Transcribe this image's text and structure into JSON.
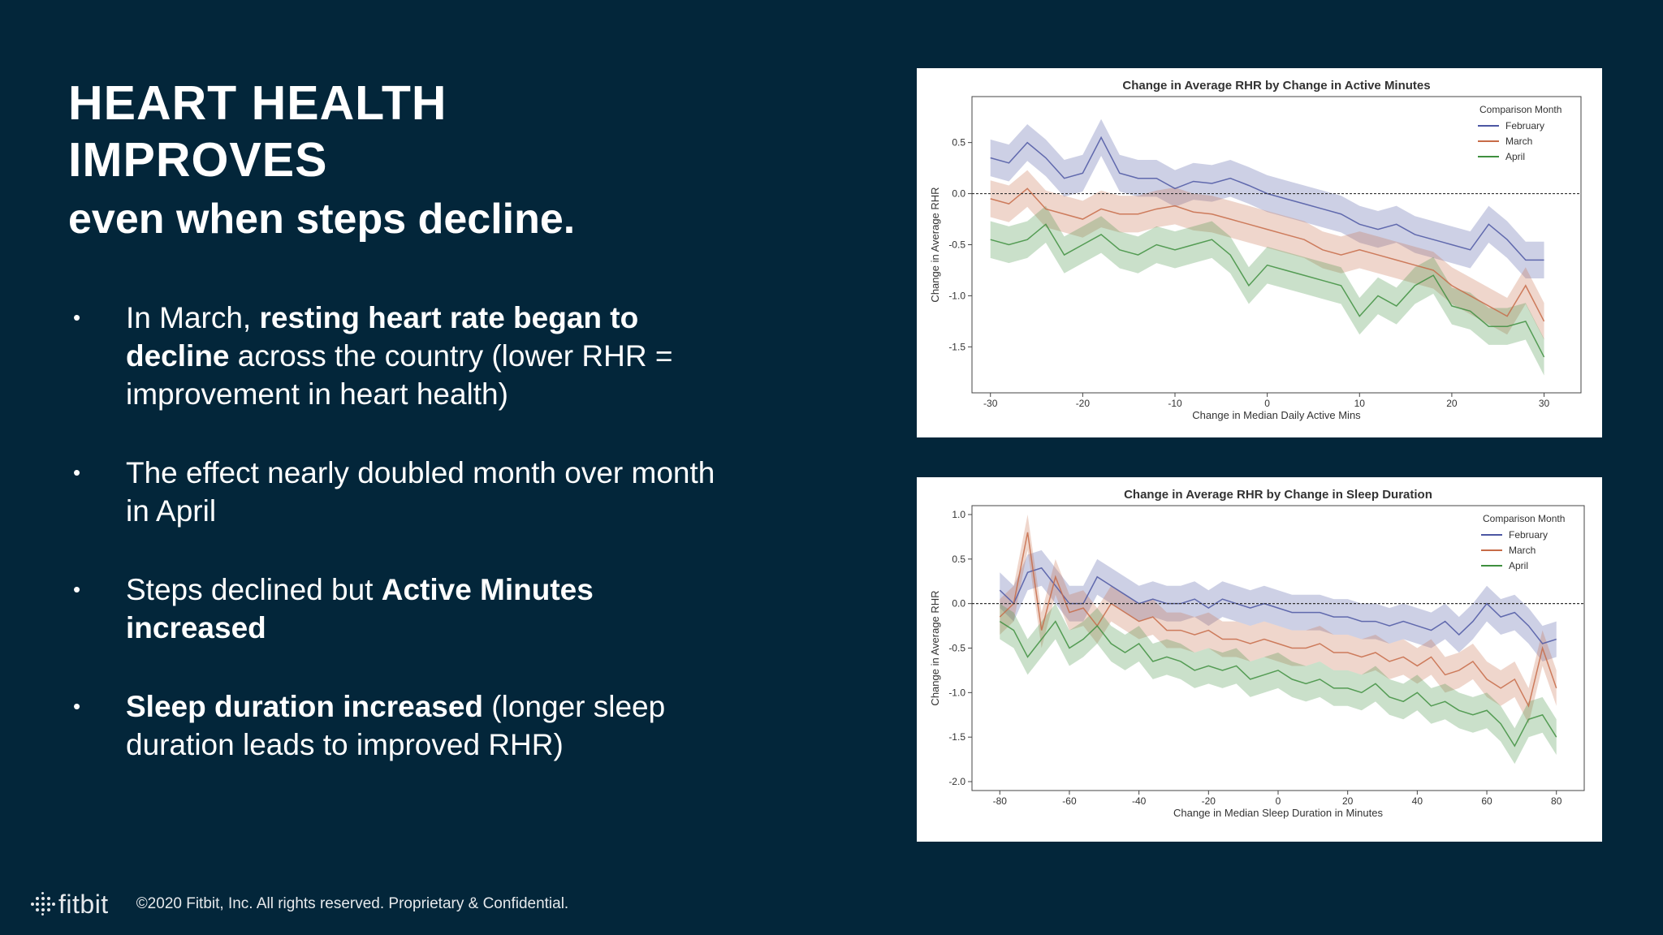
{
  "slide": {
    "title_line1": "HEART HEALTH",
    "title_line2": "IMPROVES",
    "subtitle": "even when steps decline.",
    "bullets": [
      {
        "segments": [
          {
            "text": "In March, ",
            "bold": false
          },
          {
            "text": "resting heart rate began to decline",
            "bold": true
          },
          {
            "text": " across the country (lower RHR = improvement in heart health)",
            "bold": false
          }
        ]
      },
      {
        "segments": [
          {
            "text": "The effect nearly doubled month over month in April",
            "bold": false
          }
        ]
      },
      {
        "segments": [
          {
            "text": "Steps declined but ",
            "bold": false
          },
          {
            "text": "Active Minutes increased",
            "bold": true
          }
        ]
      },
      {
        "segments": [
          {
            "text": "Sleep duration increased",
            "bold": true
          },
          {
            "text": " (longer sleep duration leads to improved RHR)",
            "bold": false
          }
        ]
      }
    ],
    "bullet_glyph": "•"
  },
  "footer": {
    "logo_text": "fitbit",
    "logo_icon": "fitbit-dots-icon",
    "copyright": "©2020 Fitbit, Inc. All rights reserved. Proprietary & Confidential."
  },
  "chart_data": [
    {
      "type": "line",
      "title": "Change in Average RHR by Change in Active Minutes",
      "xlabel": "Change in Median Daily Active Mins",
      "ylabel": "Change in Average RHR",
      "xlim": [
        -32,
        34
      ],
      "ylim": [
        -1.95,
        0.95
      ],
      "xticks": [
        -30,
        -20,
        -10,
        0,
        10,
        20,
        30
      ],
      "xtick_labels": [
        "-30",
        "-20",
        "-10",
        "0",
        "10",
        "20",
        "30"
      ],
      "yticks": [
        0.5,
        0.0,
        -0.5,
        -1.0,
        -1.5
      ],
      "ytick_labels": [
        "0.5",
        "0.0",
        "-0.5",
        "-1.0",
        "-1.5"
      ],
      "reference_line_y": 0,
      "grid": false,
      "legend": {
        "title": "Comparison Month",
        "position": "top-right"
      },
      "band": 0.18,
      "x": [
        -30,
        -28,
        -26,
        -24,
        -22,
        -20,
        -18,
        -16,
        -14,
        -12,
        -10,
        -8,
        -6,
        -4,
        -2,
        0,
        2,
        4,
        6,
        8,
        10,
        12,
        14,
        16,
        18,
        20,
        22,
        24,
        26,
        28,
        30
      ],
      "series": [
        {
          "name": "February",
          "color": "#4c57a3",
          "values": [
            0.35,
            0.3,
            0.5,
            0.35,
            0.15,
            0.2,
            0.55,
            0.2,
            0.15,
            0.15,
            0.05,
            0.12,
            0.1,
            0.15,
            0.08,
            0.0,
            -0.05,
            -0.1,
            -0.15,
            -0.2,
            -0.3,
            -0.35,
            -0.3,
            -0.4,
            -0.45,
            -0.5,
            -0.55,
            -0.3,
            -0.45,
            -0.65,
            -0.65
          ]
        },
        {
          "name": "March",
          "color": "#c76b48",
          "values": [
            -0.05,
            -0.1,
            0.05,
            -0.15,
            -0.2,
            -0.25,
            -0.15,
            -0.2,
            -0.2,
            -0.15,
            -0.12,
            -0.18,
            -0.2,
            -0.25,
            -0.3,
            -0.35,
            -0.4,
            -0.45,
            -0.55,
            -0.6,
            -0.55,
            -0.6,
            -0.65,
            -0.7,
            -0.75,
            -0.9,
            -1.0,
            -1.1,
            -1.2,
            -0.9,
            -1.25
          ]
        },
        {
          "name": "April",
          "color": "#3f8f3f",
          "values": [
            -0.45,
            -0.5,
            -0.45,
            -0.3,
            -0.6,
            -0.5,
            -0.4,
            -0.55,
            -0.6,
            -0.5,
            -0.55,
            -0.5,
            -0.45,
            -0.6,
            -0.9,
            -0.7,
            -0.75,
            -0.8,
            -0.85,
            -0.9,
            -1.2,
            -1.0,
            -1.1,
            -0.9,
            -0.8,
            -1.1,
            -1.15,
            -1.3,
            -1.3,
            -1.25,
            -1.6
          ]
        }
      ]
    },
    {
      "type": "line",
      "title": "Change in Average RHR by Change in Sleep Duration",
      "xlabel": "Change in Median Sleep Duration in Minutes",
      "ylabel": "Change in Average RHR",
      "xlim": [
        -88,
        88
      ],
      "ylim": [
        -2.1,
        1.1
      ],
      "xticks": [
        -80,
        -60,
        -40,
        -20,
        0,
        20,
        40,
        60,
        80
      ],
      "xtick_labels": [
        "-80",
        "-60",
        "-40",
        "-20",
        "0",
        "20",
        "40",
        "60",
        "80"
      ],
      "yticks": [
        1.0,
        0.5,
        0.0,
        -0.5,
        -1.0,
        -1.5,
        -2.0
      ],
      "ytick_labels": [
        "1.0",
        "0.5",
        "0.0",
        "-0.5",
        "-1.0",
        "-1.5",
        "-2.0"
      ],
      "reference_line_y": 0,
      "grid": false,
      "legend": {
        "title": "Comparison Month",
        "position": "top-right"
      },
      "band": 0.2,
      "x": [
        -80,
        -76,
        -72,
        -68,
        -64,
        -60,
        -56,
        -52,
        -48,
        -44,
        -40,
        -36,
        -32,
        -28,
        -24,
        -20,
        -16,
        -12,
        -8,
        -4,
        0,
        4,
        8,
        12,
        16,
        20,
        24,
        28,
        32,
        36,
        40,
        44,
        48,
        52,
        56,
        60,
        64,
        68,
        72,
        76,
        80
      ],
      "series": [
        {
          "name": "February",
          "color": "#4c57a3",
          "values": [
            0.15,
            0.0,
            0.35,
            0.4,
            0.2,
            0.0,
            0.0,
            0.3,
            0.2,
            0.1,
            0.0,
            0.05,
            0.0,
            0.0,
            0.05,
            -0.05,
            0.05,
            0.0,
            -0.05,
            0.0,
            -0.05,
            -0.1,
            -0.1,
            -0.1,
            -0.15,
            -0.15,
            -0.2,
            -0.2,
            -0.25,
            -0.2,
            -0.25,
            -0.3,
            -0.2,
            -0.35,
            -0.2,
            0.0,
            -0.15,
            -0.1,
            -0.25,
            -0.45,
            -0.4
          ]
        },
        {
          "name": "March",
          "color": "#c76b48",
          "values": [
            -0.15,
            0.0,
            0.8,
            -0.3,
            0.3,
            -0.1,
            -0.05,
            -0.25,
            0.0,
            -0.1,
            -0.2,
            -0.15,
            -0.3,
            -0.3,
            -0.35,
            -0.3,
            -0.4,
            -0.4,
            -0.45,
            -0.4,
            -0.45,
            -0.5,
            -0.5,
            -0.45,
            -0.55,
            -0.55,
            -0.6,
            -0.55,
            -0.65,
            -0.6,
            -0.7,
            -0.6,
            -0.8,
            -0.75,
            -0.65,
            -0.85,
            -0.95,
            -0.85,
            -1.15,
            -0.5,
            -0.95
          ]
        },
        {
          "name": "April",
          "color": "#3f8f3f",
          "values": [
            -0.2,
            -0.3,
            -0.6,
            -0.4,
            -0.2,
            -0.5,
            -0.4,
            -0.25,
            -0.45,
            -0.55,
            -0.45,
            -0.65,
            -0.6,
            -0.65,
            -0.75,
            -0.7,
            -0.75,
            -0.7,
            -0.85,
            -0.8,
            -0.75,
            -0.85,
            -0.9,
            -0.85,
            -0.95,
            -0.95,
            -1.0,
            -0.9,
            -1.05,
            -1.1,
            -1.0,
            -1.15,
            -1.1,
            -1.2,
            -1.25,
            -1.2,
            -1.35,
            -1.6,
            -1.3,
            -1.25,
            -1.5
          ]
        }
      ]
    }
  ]
}
